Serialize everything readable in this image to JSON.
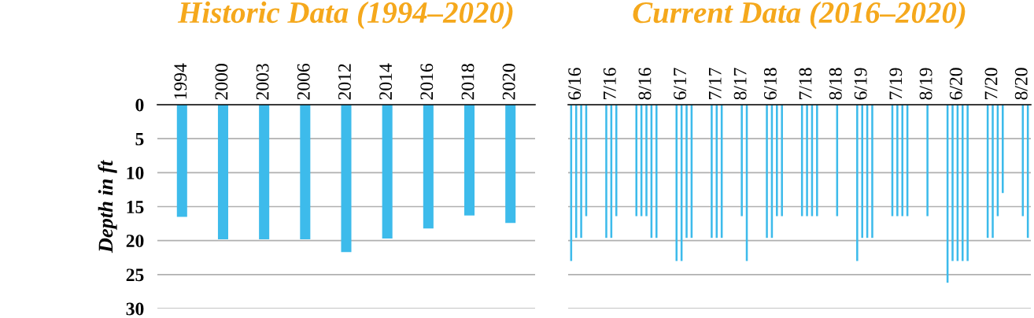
{
  "chart_data": [
    {
      "type": "bar",
      "title": "Historic Data (1994–2020)",
      "ylabel": "Depth in ft",
      "categories": [
        "1994",
        "2000",
        "2003",
        "2006",
        "2012",
        "2014",
        "2016",
        "2018",
        "2020"
      ],
      "values": [
        16.5,
        19.8,
        19.8,
        19.8,
        21.7,
        19.7,
        18.2,
        16.3,
        17.4
      ],
      "color": "#3dbbeb",
      "ylim": [
        30,
        0
      ],
      "yticks": [
        0,
        5,
        10,
        15,
        20,
        25,
        30
      ],
      "grid": "y"
    },
    {
      "type": "bar",
      "title": "Current Data (2016–2020)",
      "tick_labels": "x",
      "categories": [
        null,
        "6/16",
        null,
        null,
        null,
        null,
        null,
        null,
        "7/16",
        null,
        null,
        null,
        null,
        null,
        null,
        "8/16",
        null,
        null,
        null,
        null,
        null,
        null,
        "6/17",
        null,
        null,
        null,
        null,
        null,
        null,
        "7/17",
        null,
        null,
        null,
        null,
        "8/17",
        null,
        null,
        null,
        null,
        null,
        "6/18",
        null,
        null,
        null,
        null,
        null,
        null,
        "7/18",
        null,
        null,
        null,
        null,
        null,
        "8/18",
        null,
        null,
        null,
        null,
        "6/19",
        null,
        null,
        null,
        null,
        null,
        null,
        "7/19",
        null,
        null,
        null,
        null,
        null,
        "8/19",
        null,
        null,
        null,
        null,
        null,
        "6/20",
        null,
        null,
        null,
        null,
        null,
        null,
        "7/20",
        null,
        null,
        null,
        null,
        null,
        "8/20",
        null
      ],
      "values": [
        23,
        19.6,
        19.6,
        16.4,
        null,
        null,
        null,
        19.6,
        19.6,
        16.4,
        null,
        null,
        null,
        16.4,
        16.4,
        16.4,
        19.6,
        19.6,
        null,
        null,
        null,
        23,
        23,
        19.6,
        19.6,
        null,
        null,
        null,
        19.6,
        19.6,
        19.6,
        null,
        null,
        null,
        16.4,
        23,
        null,
        null,
        null,
        19.6,
        19.6,
        16.4,
        16.4,
        null,
        null,
        null,
        16.4,
        16.4,
        16.4,
        16.4,
        null,
        null,
        null,
        16.4,
        null,
        null,
        null,
        23,
        19.6,
        19.6,
        19.6,
        null,
        null,
        null,
        16.4,
        16.4,
        16.4,
        16.4,
        null,
        null,
        null,
        16.4,
        null,
        null,
        null,
        26.2,
        23,
        23,
        23,
        23,
        null,
        null,
        null,
        19.6,
        19.6,
        16.4,
        13.0,
        null,
        null,
        null,
        16.4,
        19.6
      ],
      "color": "#3dbbeb",
      "ylim": [
        30,
        0
      ],
      "yticks": [
        0,
        5,
        10,
        15,
        20,
        25,
        30
      ],
      "grid": "y"
    }
  ]
}
